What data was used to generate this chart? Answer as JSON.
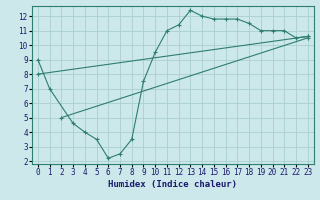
{
  "title": "",
  "xlabel": "Humidex (Indice chaleur)",
  "bg_color": "#cce8ea",
  "grid_color": "#aacfd2",
  "line_color": "#2e7d6e",
  "xlim": [
    -0.5,
    23.5
  ],
  "ylim": [
    1.8,
    12.7
  ],
  "xticks": [
    0,
    1,
    2,
    3,
    4,
    5,
    6,
    7,
    8,
    9,
    10,
    11,
    12,
    13,
    14,
    15,
    16,
    17,
    18,
    19,
    20,
    21,
    22,
    23
  ],
  "yticks": [
    2,
    3,
    4,
    5,
    6,
    7,
    8,
    9,
    10,
    11,
    12
  ],
  "line1_x": [
    0,
    1,
    3,
    4,
    5,
    6,
    7,
    8,
    9,
    10,
    11,
    12,
    13,
    14,
    15,
    16,
    17,
    18,
    19,
    20,
    21,
    22,
    23
  ],
  "line1_y": [
    9.0,
    7.0,
    4.6,
    4.0,
    3.5,
    2.2,
    2.5,
    3.5,
    7.5,
    9.5,
    11.0,
    11.4,
    12.4,
    12.0,
    11.8,
    11.8,
    11.8,
    11.5,
    11.0,
    11.0,
    11.0,
    10.5,
    10.6
  ],
  "line2_x": [
    0,
    23
  ],
  "line2_y": [
    8.0,
    10.6
  ],
  "line3_x": [
    2,
    23
  ],
  "line3_y": [
    5.0,
    10.5
  ]
}
